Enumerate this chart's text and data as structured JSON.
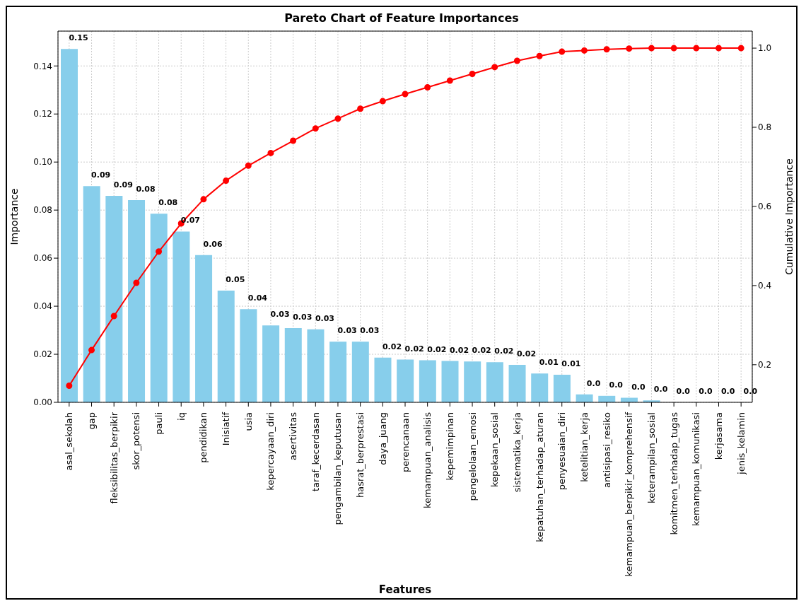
{
  "chart_data": {
    "type": "bar",
    "title": "Pareto Chart of Feature Importances",
    "xlabel": "Features",
    "ylabel": "Importance",
    "y2label": "Cumulative Importance",
    "categories": [
      "asal_sekolah",
      "gap",
      "fleksibilitas_berpikir",
      "skor_potensi",
      "pauli",
      "iq",
      "pendidikan",
      "Inisiatif",
      "usia",
      "kepercayaan_diri",
      "asertivitas",
      "taraf_kecerdasan",
      "pengambilan_keputusan",
      "hasrat_berprestasi",
      "daya_juang",
      "perencanaan",
      "kemampuan_analisis",
      "kepemimpinan",
      "pengelolaan_emosi",
      "kepekaan_sosial",
      "sistematika_kerja",
      "kepatuhan_terhadap_aturan",
      "penyesuaian_diri",
      "ketelitian_kerja",
      "antisipasi_resiko",
      "kemampuan_berpikir_komprehensif",
      "keterampilan_sosial",
      "komitmen_terhadap_tugas",
      "kemampuan_komunikasi",
      "kerjasama",
      "jenis_kelamin"
    ],
    "series": [
      {
        "color": "#87ceeb",
        "values": [
          0.1471,
          0.09,
          0.0859,
          0.0842,
          0.0785,
          0.0711,
          0.0613,
          0.0465,
          0.0388,
          0.032,
          0.0309,
          0.0304,
          0.0252,
          0.0252,
          0.0186,
          0.0178,
          0.0175,
          0.0172,
          0.017,
          0.0167,
          0.0156,
          0.012,
          0.0115,
          0.0033,
          0.0027,
          0.0019,
          0.0008,
          0,
          0,
          0,
          0
        ],
        "value_labels": [
          "0.15",
          "0.09",
          "0.09",
          "0.08",
          "0.08",
          "0.07",
          "0.06",
          "0.05",
          "0.04",
          "0.03",
          "0.03",
          "0.03",
          "0.03",
          "0.03",
          "0.02",
          "0.02",
          "0.02",
          "0.02",
          "0.02",
          "0.02",
          "0.02",
          "0.01",
          "0.01",
          "0.0",
          "0.0",
          "0.0",
          "0.0",
          "0.0",
          "0.0",
          "0.0",
          "0.0"
        ]
      },
      {
        "type": "line",
        "axis": "y2",
        "color": "#ff0000",
        "marker": "circle",
        "line_style": "solid",
        "values": [
          0.147,
          0.237,
          0.323,
          0.407,
          0.486,
          0.557,
          0.618,
          0.665,
          0.703,
          0.735,
          0.766,
          0.797,
          0.822,
          0.847,
          0.866,
          0.884,
          0.901,
          0.918,
          0.935,
          0.952,
          0.968,
          0.98,
          0.991,
          0.994,
          0.997,
          0.999,
          1.0,
          1.0,
          1.0,
          1.0,
          1.0
        ]
      }
    ],
    "ylim": [
      0,
      0.1545
    ],
    "yticks": [
      {
        "value": 0,
        "label": "0.00"
      },
      {
        "value": 0.02,
        "label": "0.02"
      },
      {
        "value": 0.04,
        "label": "0.04"
      },
      {
        "value": 0.06,
        "label": "0.06"
      },
      {
        "value": 0.08,
        "label": "0.08"
      },
      {
        "value": 0.1,
        "label": "0.10"
      },
      {
        "value": 0.12,
        "label": "0.12"
      },
      {
        "value": 0.14,
        "label": "0.14"
      }
    ],
    "y2lim": [
      0.105,
      1.043
    ],
    "y2ticks": [
      {
        "value": 0.2,
        "label": "0.2"
      },
      {
        "value": 0.4,
        "label": "0.4"
      },
      {
        "value": 0.6,
        "label": "0.6"
      },
      {
        "value": 0.8,
        "label": "0.8"
      },
      {
        "value": 1.0,
        "label": "1.0"
      }
    ],
    "grid": true,
    "legend": false
  }
}
